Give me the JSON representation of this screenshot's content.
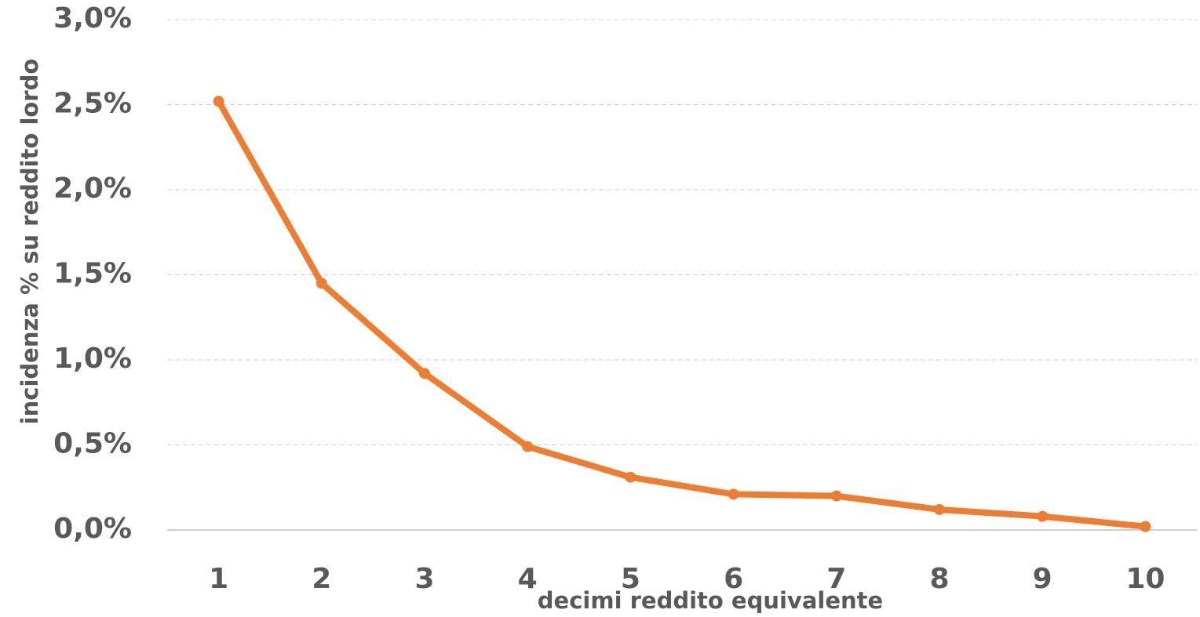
{
  "chart_data": {
    "type": "line",
    "x_label": "decimi reddito equivalente",
    "y_label": "incidenza % su reddito lordo",
    "categories": [
      "1",
      "2",
      "3",
      "4",
      "5",
      "6",
      "7",
      "8",
      "9",
      "10"
    ],
    "series": [
      {
        "name": "incidenza",
        "color": "#ed7d31",
        "values": [
          2.52,
          1.45,
          0.92,
          0.49,
          0.31,
          0.21,
          0.2,
          0.12,
          0.08,
          0.02
        ]
      }
    ],
    "ylim": [
      0,
      3
    ],
    "yticks": [
      {
        "value": 0,
        "label": "0,0%"
      },
      {
        "value": 0.5,
        "label": "0,5%"
      },
      {
        "value": 1,
        "label": "1,0%"
      },
      {
        "value": 1.5,
        "label": "1,5%"
      },
      {
        "value": 2,
        "label": "2,0%"
      },
      {
        "value": 2.5,
        "label": "2,5%"
      },
      {
        "value": 3,
        "label": "3,0%"
      }
    ],
    "grid": true
  }
}
